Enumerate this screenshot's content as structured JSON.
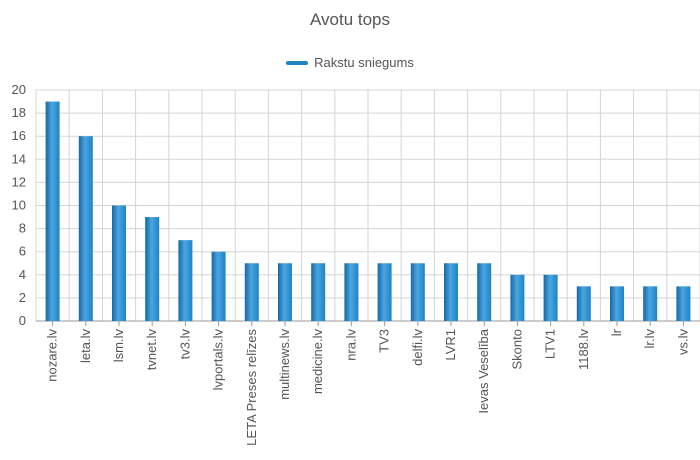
{
  "colors": {
    "bar": "#1f83c6",
    "bar_light": "#4aa6e0",
    "bar_dark": "#1568a3",
    "grid": "#d5d5d5",
    "axis": "#9a9a9a",
    "text": "#555555"
  },
  "chart_data": {
    "type": "bar",
    "title": "Avotu tops",
    "legend_position": "top-center",
    "grid": true,
    "ylim": [
      0,
      20
    ],
    "yticks": [
      0,
      2,
      4,
      6,
      8,
      10,
      12,
      14,
      16,
      18,
      20
    ],
    "categories": [
      "nozare.lv",
      "leta.lv",
      "lsm.lv",
      "tvnet.lv",
      "tv3.lv",
      "lvportals.lv",
      "LETA Preses relīzes",
      "multinews.lv",
      "medicine.lv",
      "nra.lv",
      "TV3",
      "delfi.lv",
      "LVR1",
      "Ievas Veselība",
      "Skonto",
      "LTV1",
      "1188.lv",
      "lr",
      "lr.lv",
      "vs.lv"
    ],
    "series": [
      {
        "name": "Rakstu sniegums",
        "values": [
          19,
          16,
          10,
          9,
          7,
          6,
          5,
          5,
          5,
          5,
          5,
          5,
          5,
          5,
          4,
          4,
          3,
          3,
          3,
          3
        ]
      }
    ]
  }
}
